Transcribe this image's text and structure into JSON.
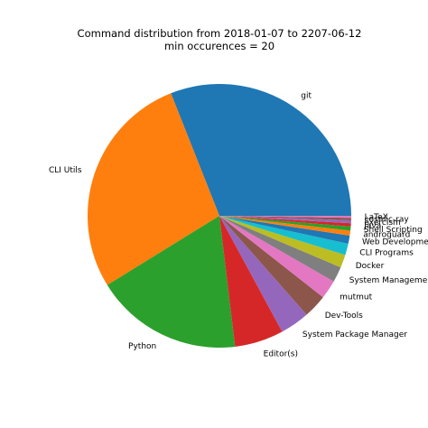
{
  "chart_data": {
    "type": "pie",
    "title": "Command distribution from 2018-01-07 to 2207-06-12",
    "subtitle": "min occurences = 20",
    "start_angle_deg": 0,
    "direction": "counterclockwise",
    "slices": [
      {
        "label": "git",
        "percent": 31.0,
        "color": "#1f77b4"
      },
      {
        "label": "CLI Utils",
        "percent": 27.8,
        "color": "#ff7f0e"
      },
      {
        "label": "Python",
        "percent": 18.1,
        "color": "#2ca02c"
      },
      {
        "label": "Editor(s)",
        "percent": 6.0,
        "color": "#d62728"
      },
      {
        "label": "System Package Manager",
        "percent": 3.6,
        "color": "#9467bd"
      },
      {
        "label": "Dev-Tools",
        "percent": 2.9,
        "color": "#8c564b"
      },
      {
        "label": "mutmut",
        "percent": 2.3,
        "color": "#e377c2"
      },
      {
        "label": "System Management",
        "percent": 1.9,
        "color": "#7f7f7f"
      },
      {
        "label": "Docker",
        "percent": 1.6,
        "color": "#bcbd22"
      },
      {
        "label": "CLI Programs",
        "percent": 1.4,
        "color": "#17becf"
      },
      {
        "label": "Web Development",
        "percent": 1.0,
        "color": "#1f77b4"
      },
      {
        "label": "androguard",
        "percent": 0.6,
        "color": "#ff7f0e"
      },
      {
        "label": "Shell Scripting",
        "percent": 0.5,
        "color": "#2ca02c"
      },
      {
        "label": "Java",
        "percent": 0.4,
        "color": "#d62728"
      },
      {
        "label": "exercism",
        "percent": 0.35,
        "color": "#9467bd"
      },
      {
        "label": "cosmic-ray",
        "percent": 0.3,
        "color": "#8c564b"
      },
      {
        "label": "LaTeX",
        "percent": 0.25,
        "color": "#e377c2"
      }
    ]
  }
}
